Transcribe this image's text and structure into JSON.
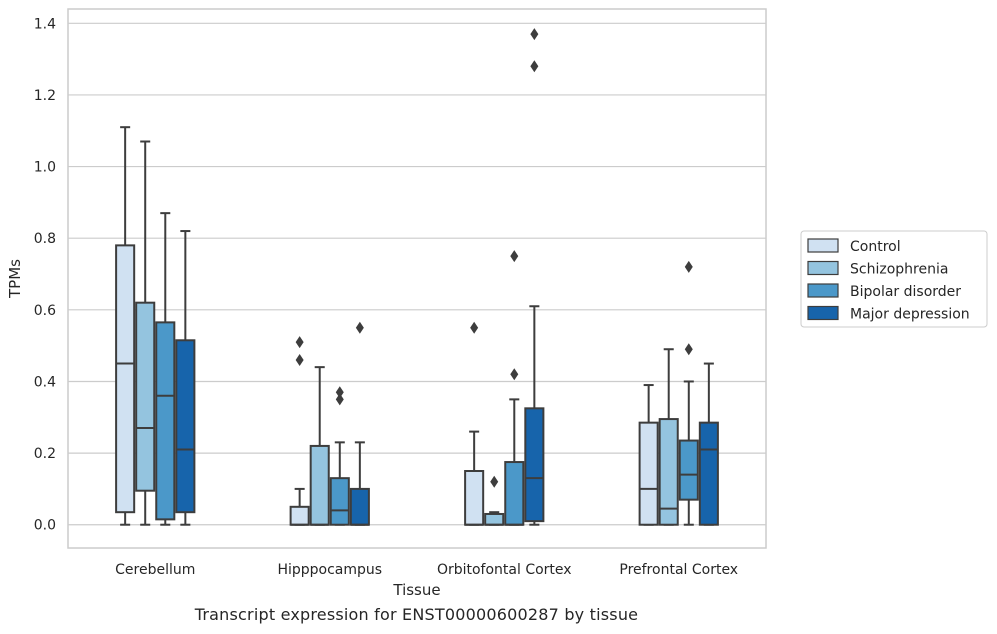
{
  "caption": "Transcript expression for ENST00000600287 by tissue",
  "chart_data": {
    "type": "box",
    "title": "",
    "xlabel": "Tissue",
    "ylabel": "TPMs",
    "categories": [
      "Cerebellum",
      "Hipppocampus",
      "Orbitofontal Cortex",
      "Prefrontal Cortex"
    ],
    "ylim": [
      -0.065,
      1.44
    ],
    "yticks": [
      0.0,
      0.2,
      0.4,
      0.6,
      0.8,
      1.0,
      1.2,
      1.4
    ],
    "ytick_labels": [
      "0.0",
      "0.2",
      "0.4",
      "0.6",
      "0.8",
      "1.0",
      "1.2",
      "1.4"
    ],
    "grid": "horizontal",
    "legend_position": "right",
    "series": [
      {
        "name": "Control",
        "color": "#d0e1f2",
        "boxes": [
          {
            "category": "Cerebellum",
            "whisker_low": 0.0,
            "q1": 0.035,
            "median": 0.45,
            "q3": 0.78,
            "whisker_high": 1.11,
            "outliers": []
          },
          {
            "category": "Hipppocampus",
            "whisker_low": 0.0,
            "q1": 0.0,
            "median": 0.0,
            "q3": 0.05,
            "whisker_high": 0.1,
            "outliers": [
              0.46,
              0.51
            ]
          },
          {
            "category": "Orbitofontal Cortex",
            "whisker_low": 0.0,
            "q1": 0.0,
            "median": 0.0,
            "q3": 0.15,
            "whisker_high": 0.26,
            "outliers": [
              0.55
            ]
          },
          {
            "category": "Prefrontal Cortex",
            "whisker_low": 0.0,
            "q1": 0.0,
            "median": 0.1,
            "q3": 0.285,
            "whisker_high": 0.39,
            "outliers": []
          }
        ]
      },
      {
        "name": "Schizophrenia",
        "color": "#94c4df",
        "boxes": [
          {
            "category": "Cerebellum",
            "whisker_low": 0.0,
            "q1": 0.095,
            "median": 0.27,
            "q3": 0.62,
            "whisker_high": 1.07,
            "outliers": []
          },
          {
            "category": "Hipppocampus",
            "whisker_low": 0.0,
            "q1": 0.0,
            "median": 0.0,
            "q3": 0.22,
            "whisker_high": 0.44,
            "outliers": []
          },
          {
            "category": "Orbitofontal Cortex",
            "whisker_low": 0.0,
            "q1": 0.0,
            "median": 0.0,
            "q3": 0.03,
            "whisker_high": 0.035,
            "outliers": [
              0.12
            ]
          },
          {
            "category": "Prefrontal Cortex",
            "whisker_low": 0.0,
            "q1": 0.0,
            "median": 0.045,
            "q3": 0.295,
            "whisker_high": 0.49,
            "outliers": []
          }
        ]
      },
      {
        "name": "Bipolar disorder",
        "color": "#4b98c9",
        "boxes": [
          {
            "category": "Cerebellum",
            "whisker_low": 0.0,
            "q1": 0.015,
            "median": 0.36,
            "q3": 0.565,
            "whisker_high": 0.87,
            "outliers": []
          },
          {
            "category": "Hipppocampus",
            "whisker_low": 0.0,
            "q1": 0.0,
            "median": 0.04,
            "q3": 0.13,
            "whisker_high": 0.23,
            "outliers": [
              0.35,
              0.37
            ]
          },
          {
            "category": "Orbitofontal Cortex",
            "whisker_low": 0.0,
            "q1": 0.0,
            "median": 0.0,
            "q3": 0.175,
            "whisker_high": 0.35,
            "outliers": [
              0.42,
              0.75
            ]
          },
          {
            "category": "Prefrontal Cortex",
            "whisker_low": 0.0,
            "q1": 0.07,
            "median": 0.14,
            "q3": 0.235,
            "whisker_high": 0.4,
            "outliers": [
              0.49,
              0.72
            ]
          }
        ]
      },
      {
        "name": "Major depression",
        "color": "#1764ab",
        "boxes": [
          {
            "category": "Cerebellum",
            "whisker_low": 0.0,
            "q1": 0.035,
            "median": 0.21,
            "q3": 0.515,
            "whisker_high": 0.82,
            "outliers": []
          },
          {
            "category": "Hipppocampus",
            "whisker_low": 0.0,
            "q1": 0.0,
            "median": 0.0,
            "q3": 0.1,
            "whisker_high": 0.23,
            "outliers": [
              0.55
            ]
          },
          {
            "category": "Orbitofontal Cortex",
            "whisker_low": 0.0,
            "q1": 0.01,
            "median": 0.13,
            "q3": 0.325,
            "whisker_high": 0.61,
            "outliers": [
              1.28,
              1.37
            ]
          },
          {
            "category": "Prefrontal Cortex",
            "whisker_low": 0.0,
            "q1": 0.0,
            "median": 0.21,
            "q3": 0.285,
            "whisker_high": 0.45,
            "outliers": []
          }
        ]
      }
    ]
  }
}
